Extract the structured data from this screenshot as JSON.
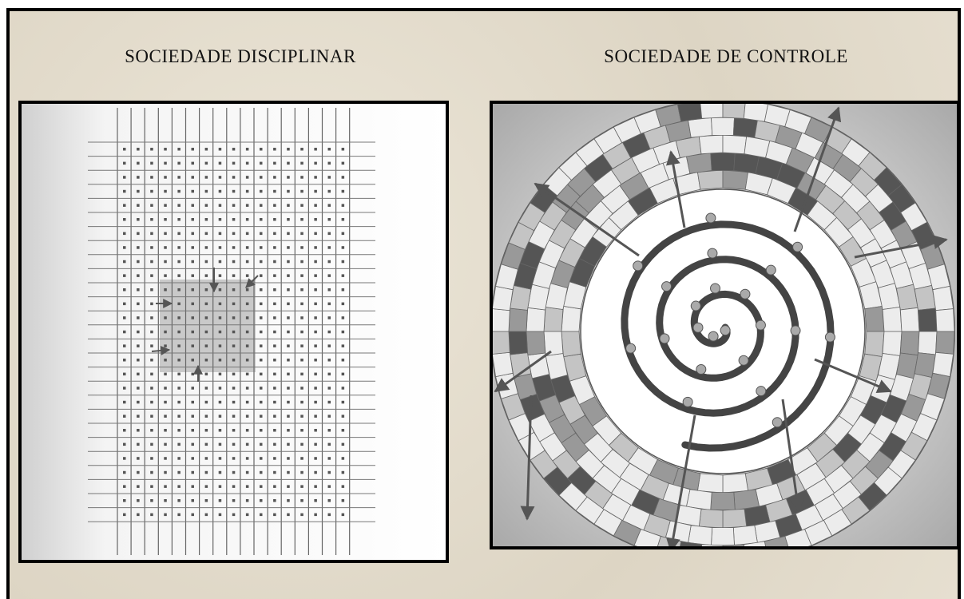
{
  "panels": [
    {
      "title": "SOCIEDADE DISCIPLINAR"
    },
    {
      "title": "SOCIEDADE DE CONTROLE"
    }
  ]
}
